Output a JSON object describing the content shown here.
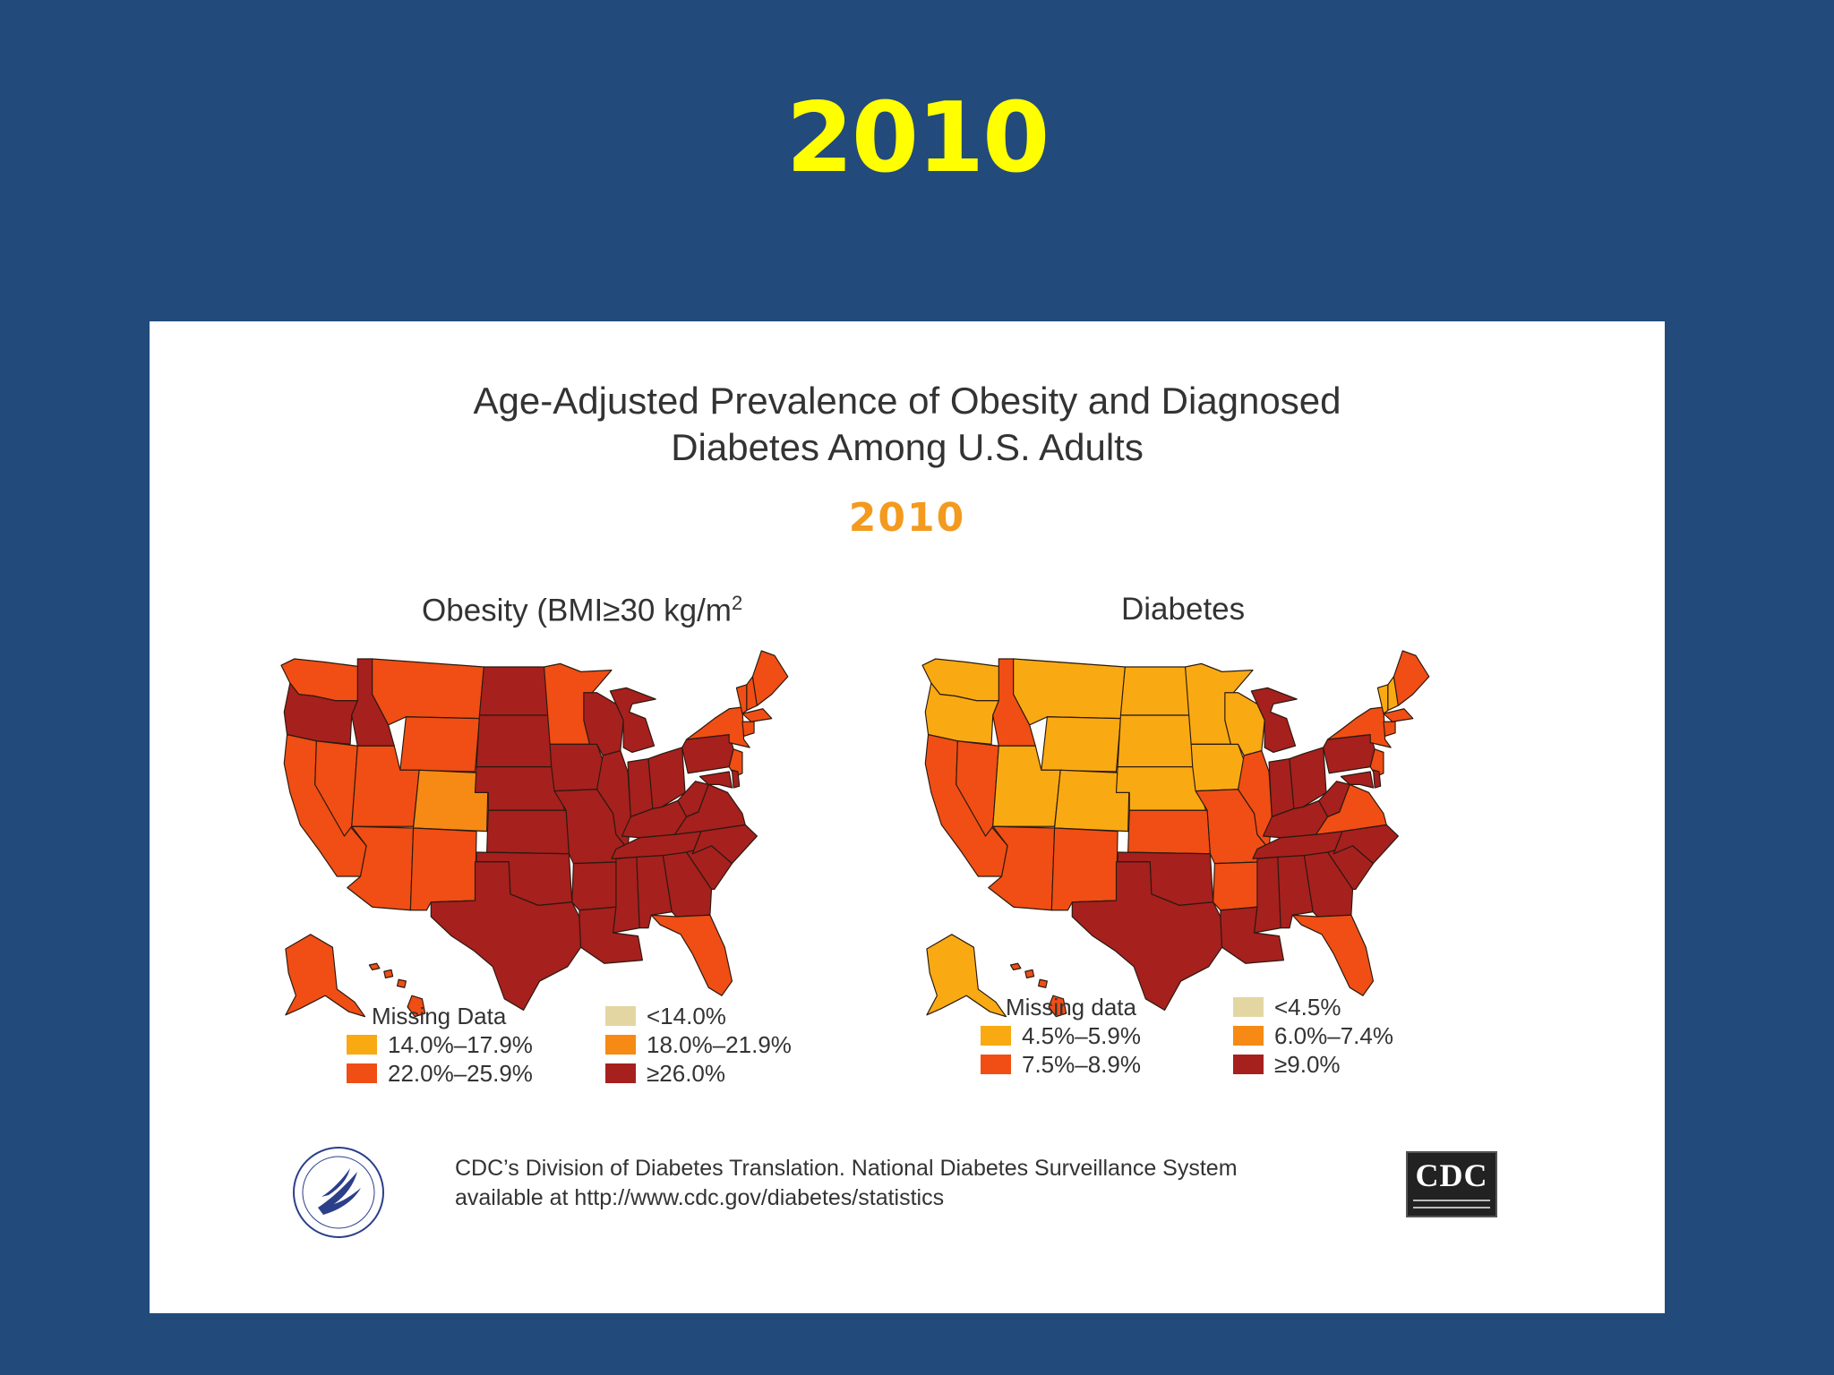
{
  "slide": {
    "title": "2010"
  },
  "figure": {
    "title_line1": "Age-Adjusted Prevalence of Obesity and Diagnosed",
    "title_line2": "Diabetes Among U.S. Adults",
    "year": "2010"
  },
  "maps": [
    {
      "title": "Obesity (BMI≥30 kg/m",
      "title_sup": "2",
      "legend": [
        {
          "label": "Missing Data",
          "color": "#ffffff"
        },
        {
          "label": "<14.0%",
          "color": "#e3d6a2"
        },
        {
          "label": "14.0%–17.9%",
          "color": "#f9aa12"
        },
        {
          "label": "18.0%–21.9%",
          "color": "#f68a14"
        },
        {
          "label": "22.0%–25.9%",
          "color": "#f04e14"
        },
        {
          "label": "≥26.0%",
          "color": "#a6201e"
        }
      ]
    },
    {
      "title": "Diabetes",
      "legend": [
        {
          "label": "Missing data",
          "color": "#ffffff"
        },
        {
          "label": "<4.5%",
          "color": "#e3d6a2"
        },
        {
          "label": "4.5%–5.9%",
          "color": "#f9aa12"
        },
        {
          "label": "6.0%–7.4%",
          "color": "#f68a14"
        },
        {
          "label": "7.5%–8.9%",
          "color": "#f04e14"
        },
        {
          "label": "≥9.0%",
          "color": "#a6201e"
        }
      ]
    }
  ],
  "credit": {
    "line1": "CDC’s Division of Diabetes Translation. National Diabetes Surveillance System",
    "line2": "available at http://www.cdc.gov/diabetes/statistics"
  },
  "logos": {
    "agency": "CDC"
  },
  "colors": {
    "background": "#224a7b",
    "title": "#ffff00",
    "year": "#f39a1f",
    "border": "#2a1a10"
  },
  "state_colors": {
    "obesity": {
      "WA": "#f04e14",
      "OR": "#a6201e",
      "CA": "#f04e14",
      "NV": "#f04e14",
      "ID": "#a6201e",
      "MT": "#f04e14",
      "WY": "#f04e14",
      "UT": "#f04e14",
      "CO": "#f68a14",
      "AZ": "#f04e14",
      "NM": "#f04e14",
      "ND": "#a6201e",
      "SD": "#a6201e",
      "NE": "#a6201e",
      "KS": "#a6201e",
      "OK": "#a6201e",
      "TX": "#a6201e",
      "MN": "#f04e14",
      "IA": "#a6201e",
      "MO": "#a6201e",
      "AR": "#a6201e",
      "LA": "#a6201e",
      "WI": "#a6201e",
      "IL": "#a6201e",
      "MI": "#a6201e",
      "IN": "#a6201e",
      "OH": "#a6201e",
      "KY": "#a6201e",
      "TN": "#a6201e",
      "MS": "#a6201e",
      "AL": "#a6201e",
      "GA": "#a6201e",
      "FL": "#f04e14",
      "SC": "#a6201e",
      "NC": "#a6201e",
      "VA": "#a6201e",
      "WV": "#a6201e",
      "PA": "#a6201e",
      "NY": "#f04e14",
      "VT": "#f04e14",
      "NH": "#f04e14",
      "ME": "#f04e14",
      "MA": "#f04e14",
      "CT": "#f04e14",
      "NJ": "#f04e14",
      "MD": "#a6201e",
      "DE": "#a6201e",
      "AK": "#f04e14",
      "HI": "#f04e14"
    },
    "diabetes": {
      "WA": "#f9aa12",
      "OR": "#f9aa12",
      "CA": "#f04e14",
      "NV": "#f04e14",
      "ID": "#f04e14",
      "MT": "#f9aa12",
      "WY": "#f9aa12",
      "UT": "#f9aa12",
      "CO": "#f9aa12",
      "AZ": "#f04e14",
      "NM": "#f04e14",
      "ND": "#f9aa12",
      "SD": "#f9aa12",
      "NE": "#f9aa12",
      "KS": "#f04e14",
      "OK": "#a6201e",
      "TX": "#a6201e",
      "MN": "#f9aa12",
      "IA": "#f9aa12",
      "MO": "#f04e14",
      "AR": "#f04e14",
      "LA": "#a6201e",
      "WI": "#f9aa12",
      "IL": "#f04e14",
      "MI": "#a6201e",
      "IN": "#a6201e",
      "OH": "#a6201e",
      "KY": "#a6201e",
      "TN": "#a6201e",
      "MS": "#a6201e",
      "AL": "#a6201e",
      "GA": "#a6201e",
      "FL": "#f04e14",
      "SC": "#a6201e",
      "NC": "#a6201e",
      "VA": "#f04e14",
      "WV": "#a6201e",
      "PA": "#a6201e",
      "NY": "#f04e14",
      "VT": "#f9aa12",
      "NH": "#f9aa12",
      "ME": "#f04e14",
      "MA": "#f04e14",
      "CT": "#f04e14",
      "NJ": "#f04e14",
      "MD": "#a6201e",
      "DE": "#a6201e",
      "AK": "#f9aa12",
      "HI": "#f04e14"
    }
  }
}
